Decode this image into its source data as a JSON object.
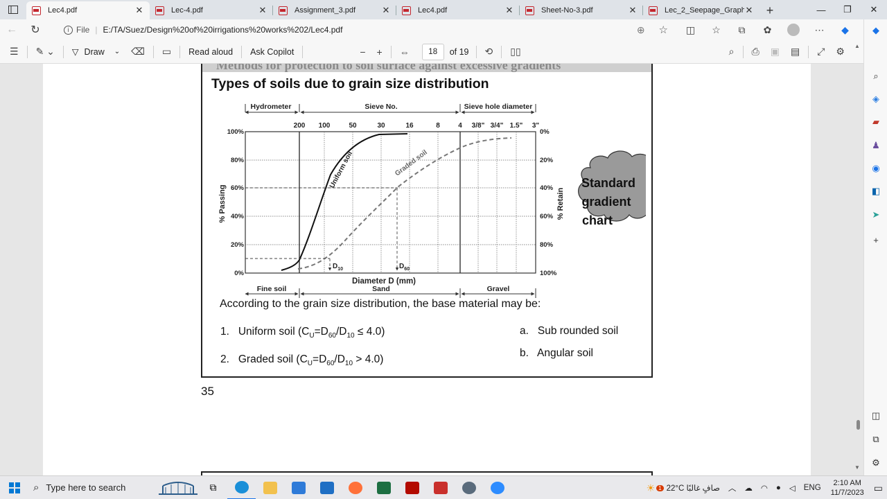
{
  "browser": {
    "tabs": [
      {
        "title": "Lec4.pdf",
        "active": true
      },
      {
        "title": "Lec-4.pdf",
        "active": false
      },
      {
        "title": "Assignment_3.pdf",
        "active": false
      },
      {
        "title": "Lec4.pdf",
        "active": false
      },
      {
        "title": "Sheet-No-3.pdf",
        "active": false
      },
      {
        "title": "Lec_2_Seepage_Graphical m",
        "active": false
      }
    ],
    "address": {
      "scheme_label": "File",
      "url": "E:/TA/Suez/Design%20of%20irrigations%20works%202/Lec4.pdf"
    }
  },
  "pdf_toolbar": {
    "draw_label": "Draw",
    "read_aloud_label": "Read aloud",
    "ask_copilot_label": "Ask Copilot",
    "page_current": "18",
    "page_total": "of 19"
  },
  "document": {
    "banner_text": "Methods for protection to soil surface against excessive gradients",
    "heading": "Types of soils due to grain size distribution",
    "chart_text": {
      "hydrometer": "Hydrometer",
      "sieve_no": "Sieve No.",
      "sieve_hole": "Sieve hole diameter",
      "top_ticks": [
        "200",
        "100",
        "50",
        "30",
        "16",
        "8",
        "4",
        "3/8\"",
        "3/4\"",
        "1.5\"",
        "3\""
      ],
      "left_ticks": [
        "100%",
        "80%",
        "60%",
        "40%",
        "20%",
        "0%"
      ],
      "right_ticks": [
        "0%",
        "20%",
        "40%",
        "60%",
        "80%",
        "100%"
      ],
      "ylabel_left": "% Passing",
      "ylabel_right": "% Retain",
      "xlabel": "Diameter D (mm)",
      "uniform": "Uniform soil",
      "graded": "Graded soil",
      "d10": "D",
      "d10_sub": "10",
      "d60": "D",
      "d60_sub": "60",
      "fine_soil": "Fine soil",
      "sand": "Sand",
      "gravel": "Gravel",
      "cloud_line1": "Standard",
      "cloud_line2": "gradient",
      "cloud_line3": "chart"
    },
    "intro": "According to the grain size distribution, the base material may be:",
    "list1": {
      "n": "1.",
      "a": "Uniform soil (C",
      "sub1": "U",
      "b": "=D",
      "sub2": "60",
      "c": "/D",
      "sub3": "10",
      "d": " ≤ 4.0)"
    },
    "list2": {
      "n": "2.",
      "a": "Graded soil (C",
      "sub1": "U",
      "b": "=D",
      "sub2": "60",
      "c": "/D",
      "sub3": "10",
      "d": " > 4.0)"
    },
    "list_a": {
      "n": "a.",
      "text": "Sub rounded soil"
    },
    "list_b": {
      "n": "b.",
      "text": "Angular soil"
    },
    "page_number": "35"
  },
  "taskbar": {
    "search_placeholder": "Type here to search",
    "weather": "22°C  صافٍ غالبًا",
    "lang": "ENG",
    "time": "2:10 AM",
    "date": "11/7/2023",
    "notification_badge": "1"
  }
}
